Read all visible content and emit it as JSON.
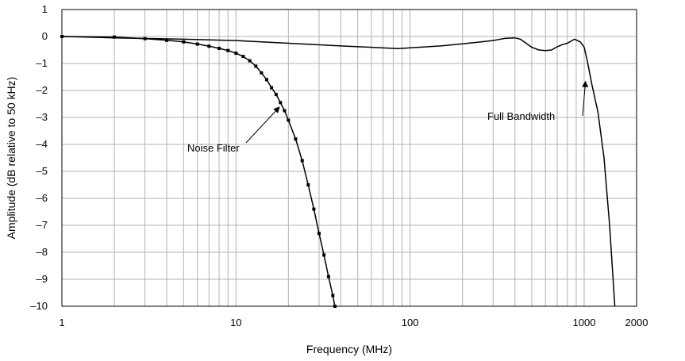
{
  "chart_data": {
    "type": "line",
    "title": "",
    "xlabel": "Frequency (MHz)",
    "ylabel": "Amplitude (dB relative to 50 kHz)",
    "xscale": "log",
    "xlim": [
      1,
      2000
    ],
    "ylim": [
      -10,
      1
    ],
    "xticks": [
      1,
      10,
      100,
      1000,
      2000
    ],
    "xtick_labels": [
      "1",
      "10",
      "100",
      "1000",
      "2000"
    ],
    "yticks": [
      1,
      0,
      -1,
      -2,
      -3,
      -4,
      -5,
      -6,
      -7,
      -8,
      -9,
      -10
    ],
    "ytick_labels": [
      "1",
      "0",
      "–1",
      "–2",
      "–3",
      "–4",
      "–5",
      "–6",
      "–7",
      "–8",
      "–9",
      "–10"
    ],
    "grid": true,
    "series": [
      {
        "name": "Full Bandwidth",
        "marker": "none",
        "x": [
          1,
          2,
          5,
          10,
          20,
          40,
          60,
          85,
          100,
          150,
          200,
          300,
          350,
          400,
          430,
          500,
          550,
          600,
          650,
          700,
          750,
          800,
          880,
          950,
          1000,
          1050,
          1100,
          1200,
          1300,
          1400,
          1500
        ],
        "y": [
          0,
          -0.05,
          -0.1,
          -0.15,
          -0.25,
          -0.35,
          -0.4,
          -0.45,
          -0.42,
          -0.35,
          -0.27,
          -0.15,
          -0.07,
          -0.05,
          -0.1,
          -0.4,
          -0.5,
          -0.52,
          -0.5,
          -0.38,
          -0.3,
          -0.25,
          -0.1,
          -0.2,
          -0.4,
          -1.0,
          -1.7,
          -2.8,
          -4.5,
          -7.0,
          -10
        ]
      },
      {
        "name": "Noise Filter",
        "marker": "square",
        "x": [
          1,
          2,
          3,
          4,
          5,
          6,
          7,
          8,
          9,
          10,
          11,
          12,
          13,
          14,
          15,
          16,
          17,
          18,
          19,
          20,
          22,
          24,
          26,
          28,
          30,
          32,
          34,
          36,
          37
        ],
        "y": [
          0,
          -0.02,
          -0.08,
          -0.14,
          -0.2,
          -0.28,
          -0.36,
          -0.44,
          -0.52,
          -0.62,
          -0.74,
          -0.9,
          -1.1,
          -1.35,
          -1.6,
          -1.9,
          -2.15,
          -2.45,
          -2.75,
          -3.1,
          -3.8,
          -4.6,
          -5.5,
          -6.4,
          -7.3,
          -8.1,
          -8.9,
          -9.6,
          -10
        ]
      }
    ],
    "annotations": [
      {
        "text": "Noise Filter",
        "target_x": 18.5,
        "target_y": -2.5
      },
      {
        "text": "Full Bandwidth",
        "target_x": 1050,
        "target_y": -1.55
      }
    ]
  }
}
